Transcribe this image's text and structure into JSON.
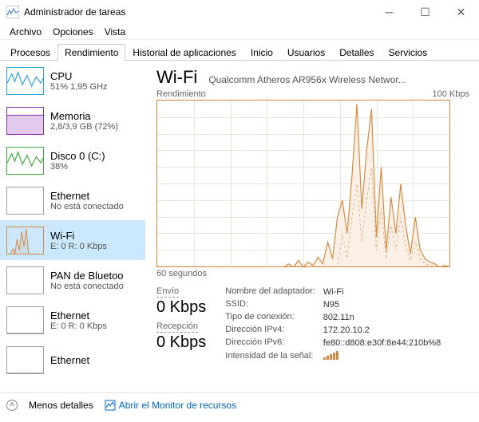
{
  "window": {
    "title": "Administrador de tareas"
  },
  "menu": {
    "file": "Archivo",
    "options": "Opciones",
    "view": "Vista"
  },
  "tabs": {
    "procesos": "Procesos",
    "rendimiento": "Rendimiento",
    "historial": "Historial de aplicaciones",
    "inicio": "Inicio",
    "usuarios": "Usuarios",
    "detalles": "Detalles",
    "servicios": "Servicios"
  },
  "sidebar": [
    {
      "name": "CPU",
      "sub": "51%  1,95 GHz",
      "color": "#29a0d8",
      "type": "line"
    },
    {
      "name": "Memoria",
      "sub": "2,8/3,9 GB (72%)",
      "color": "#8a2bb2",
      "type": "fill",
      "pct": 0.72
    },
    {
      "name": "Disco 0 (C:)",
      "sub": "38%",
      "color": "#3da93f",
      "type": "line"
    },
    {
      "name": "Ethernet",
      "sub": "No está conectado",
      "color": "#a0a0a0",
      "type": "empty"
    },
    {
      "name": "Wi-Fi",
      "sub": "E: 0  R: 0 Kbps",
      "color": "#d68a41",
      "type": "wifi",
      "selected": true
    },
    {
      "name": "PAN de Bluetoo",
      "sub": "No está conectado",
      "color": "#a0a0a0",
      "type": "empty"
    },
    {
      "name": "Ethernet",
      "sub": "E: 0  R: 0 Kbps",
      "color": "#a0a0a0",
      "type": "flat"
    },
    {
      "name": "Ethernet",
      "sub": "",
      "color": "#a0a0a0",
      "type": "flat"
    }
  ],
  "main": {
    "title": "Wi-Fi",
    "adapter": "Qualcomm Atheros AR956x Wireless Networ...",
    "chart": {
      "left_label": "Rendimiento",
      "right_label": "100 Kbps",
      "x_label": "60 segundos",
      "border_color": "#d68a41",
      "grid_color": "#f2e4d8",
      "line_color": "#d68a41",
      "dash_color": "#e2b28c",
      "fill_color": "#fbf0e6",
      "grid_cols": 8,
      "grid_rows": 10,
      "solid_series": [
        0,
        0,
        0,
        0,
        0,
        0,
        2,
        0,
        4,
        0,
        3,
        1,
        6,
        2,
        15,
        5,
        30,
        40,
        20,
        55,
        98,
        35,
        70,
        95,
        18,
        60,
        10,
        42,
        20,
        50,
        25,
        8,
        30,
        10,
        5,
        3,
        2,
        0,
        1,
        0
      ],
      "dash_series": [
        0,
        0,
        0,
        0,
        0,
        0,
        0,
        0,
        0,
        0,
        0,
        0,
        0,
        0,
        0,
        0,
        0,
        20,
        5,
        30,
        50,
        15,
        40,
        60,
        10,
        35,
        5,
        25,
        10,
        30,
        12,
        4,
        15,
        5,
        2,
        1,
        0,
        0,
        0,
        0
      ]
    },
    "send": {
      "label": "Envío",
      "value": "0 Kbps"
    },
    "recv": {
      "label": "Recepción",
      "value": "0 Kbps"
    },
    "details": {
      "adapter_name_label": "Nombre del adaptador:",
      "adapter_name": "Wi-Fi",
      "ssid_label": "SSID:",
      "ssid": "N95",
      "conn_type_label": "Tipo de conexión:",
      "conn_type": "802.11n",
      "ipv4_label": "Dirección IPv4:",
      "ipv4": "172.20.10.2",
      "ipv6_label": "Dirección IPv6:",
      "ipv6": "fe80::d808:e30f:8e44:210b%8",
      "signal_label": "Intensidad de la señal:"
    }
  },
  "footer": {
    "fewer": "Menos detalles",
    "resmon": "Abrir el Monitor de recursos"
  }
}
